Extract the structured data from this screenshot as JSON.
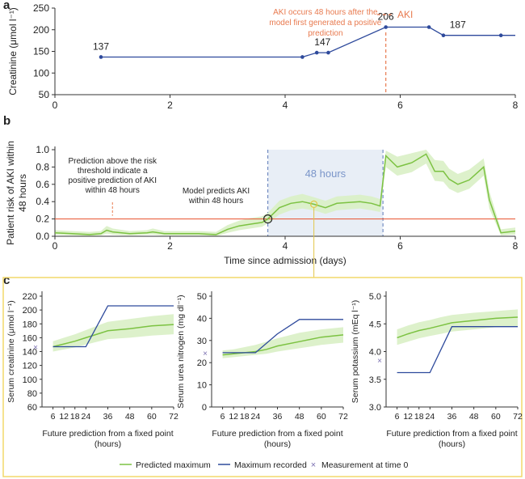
{
  "panels": {
    "a": "a",
    "b": "b",
    "c": "c"
  },
  "colors": {
    "measured": "#2e4a9c",
    "predicted": "#7cc242",
    "band": "#d9efc5",
    "event": "#e87a4f",
    "threshold": "#e8502c",
    "window_fill": "#e8eef6",
    "window_line": "#5a78b8",
    "window_text": "#7a95c9",
    "frame": "#f2d86a",
    "crossMark": "#7a6fb0"
  },
  "chart_data": [
    {
      "id": "a",
      "type": "line",
      "ylabel": "Creatinine (μmol l⁻¹)",
      "xlim": [
        0,
        8
      ],
      "ylim": [
        50,
        250
      ],
      "xticks": [
        0,
        2,
        4,
        6,
        8
      ],
      "yticks": [
        50,
        100,
        150,
        200,
        250
      ],
      "series": [
        {
          "points": [
            [
              0.8,
              137
            ],
            [
              4.3,
              137
            ],
            [
              4.55,
              147
            ],
            [
              4.75,
              147
            ],
            [
              5.75,
              206
            ],
            [
              6.5,
              206
            ],
            [
              6.75,
              187
            ],
            [
              7.75,
              187
            ],
            [
              8,
              187
            ]
          ]
        }
      ],
      "markers": [
        0.8,
        4.3,
        4.55,
        4.75,
        5.75,
        6.5,
        6.75,
        7.75
      ],
      "labels": [
        {
          "x": 0.8,
          "y": 137,
          "text": "137"
        },
        {
          "x": 4.65,
          "y": 147,
          "text": "147"
        },
        {
          "x": 5.75,
          "y": 206,
          "text": "206"
        },
        {
          "x": 7.0,
          "y": 187,
          "text": "187"
        }
      ],
      "event_x": 5.75,
      "annotation": [
        "AKI occurs 48 hours after the",
        "model first generated a positive",
        "prediction"
      ],
      "legend": "AKI"
    },
    {
      "id": "b",
      "type": "line",
      "ylabel": [
        "Patient risk of AKI within",
        "48 hours"
      ],
      "xlabel": "Time since admission (days)",
      "xlim": [
        0,
        8
      ],
      "ylim": [
        0,
        1
      ],
      "xticks": [
        0,
        2,
        4,
        6,
        8
      ],
      "yticks": [
        0,
        0.2,
        0.4,
        0.6,
        0.8,
        1.0
      ],
      "threshold": 0.2,
      "window": [
        3.7,
        5.7
      ],
      "window_label": "48 hours",
      "crossing": [
        3.7,
        0.2
      ],
      "crossing_label": [
        "Model predicts AKI",
        "within 48 hours"
      ],
      "threshold_note": [
        "Prediction above the risk",
        "threshold indicate a",
        "positive prediction of AKI",
        "within 48 hours"
      ],
      "arrow_x": 1.0,
      "selected_x": 4.5,
      "x": [
        0,
        0.3,
        0.6,
        0.8,
        0.9,
        1.0,
        1.3,
        1.6,
        1.7,
        1.9,
        2.2,
        2.5,
        2.8,
        3.0,
        3.2,
        3.4,
        3.6,
        3.7,
        3.9,
        4.1,
        4.3,
        4.5,
        4.7,
        4.9,
        5.1,
        5.3,
        5.5,
        5.65,
        5.75,
        5.95,
        6.2,
        6.45,
        6.6,
        6.75,
        6.85,
        7.0,
        7.2,
        7.45,
        7.55,
        7.75,
        8.0
      ],
      "risk": [
        0.04,
        0.03,
        0.02,
        0.03,
        0.07,
        0.05,
        0.03,
        0.04,
        0.05,
        0.03,
        0.03,
        0.03,
        0.02,
        0.08,
        0.12,
        0.14,
        0.16,
        0.2,
        0.33,
        0.38,
        0.4,
        0.37,
        0.33,
        0.38,
        0.39,
        0.4,
        0.38,
        0.35,
        0.93,
        0.8,
        0.85,
        0.95,
        0.75,
        0.75,
        0.66,
        0.6,
        0.65,
        0.8,
        0.42,
        0.04,
        0.06
      ],
      "lower": [
        0.02,
        0.01,
        0.0,
        0.01,
        0.03,
        0.02,
        0.01,
        0.02,
        0.02,
        0.01,
        0.01,
        0.01,
        0.0,
        0.04,
        0.07,
        0.09,
        0.11,
        0.15,
        0.25,
        0.3,
        0.32,
        0.3,
        0.26,
        0.3,
        0.31,
        0.32,
        0.3,
        0.28,
        0.8,
        0.7,
        0.74,
        0.84,
        0.64,
        0.63,
        0.55,
        0.5,
        0.55,
        0.7,
        0.32,
        0.01,
        0.02
      ],
      "upper": [
        0.07,
        0.06,
        0.05,
        0.06,
        0.12,
        0.09,
        0.06,
        0.07,
        0.09,
        0.06,
        0.06,
        0.06,
        0.05,
        0.13,
        0.18,
        0.21,
        0.23,
        0.27,
        0.41,
        0.46,
        0.49,
        0.45,
        0.41,
        0.46,
        0.47,
        0.48,
        0.46,
        0.43,
        0.99,
        0.92,
        0.96,
        1.0,
        0.88,
        0.87,
        0.78,
        0.72,
        0.77,
        0.9,
        0.52,
        0.08,
        0.1
      ]
    },
    {
      "id": "c1",
      "type": "line",
      "ylabel": "Serum creatinine (μmol l⁻¹)",
      "xlabel": [
        "Future prediction from a fixed point",
        "(hours)"
      ],
      "xlim": [
        0,
        72
      ],
      "ylim": [
        60,
        220
      ],
      "xticks": [
        6,
        12,
        18,
        24,
        36,
        48,
        60,
        72
      ],
      "yticks": [
        60,
        80,
        100,
        120,
        140,
        160,
        180,
        200,
        220
      ],
      "time0": 147,
      "recorded": [
        [
          6,
          147
        ],
        [
          24,
          147
        ],
        [
          36,
          206
        ],
        [
          72,
          206
        ]
      ],
      "pred_x": [
        6,
        12,
        18,
        24,
        30,
        36,
        48,
        60,
        72
      ],
      "predicted": [
        147,
        151,
        155,
        160,
        165,
        170,
        173,
        177,
        179
      ],
      "pred_lower": [
        140,
        143,
        146,
        150,
        154,
        158,
        160,
        163,
        165
      ],
      "pred_upper": [
        155,
        160,
        165,
        171,
        177,
        183,
        187,
        191,
        194
      ]
    },
    {
      "id": "c2",
      "type": "line",
      "ylabel": "Serum urea nitrogen (mg dl⁻¹)",
      "xlabel": [
        "Future prediction from a fixed point",
        "(hours)"
      ],
      "xlim": [
        0,
        72
      ],
      "ylim": [
        0,
        50
      ],
      "xticks": [
        6,
        12,
        18,
        24,
        36,
        48,
        60,
        72
      ],
      "yticks": [
        0,
        10,
        20,
        30,
        40,
        50
      ],
      "time0": 24.5,
      "recorded": [
        [
          6,
          24.5
        ],
        [
          24,
          24.5
        ],
        [
          36,
          33
        ],
        [
          48,
          39.5
        ],
        [
          72,
          39.5
        ]
      ],
      "pred_x": [
        6,
        12,
        18,
        24,
        30,
        36,
        48,
        60,
        72
      ],
      "predicted": [
        23.5,
        24,
        24.5,
        25,
        26,
        27.5,
        29.5,
        31.5,
        32.5
      ],
      "pred_lower": [
        22,
        22.5,
        23,
        23.5,
        24,
        25,
        26.5,
        28,
        29
      ],
      "pred_upper": [
        25.5,
        26,
        27,
        28,
        29.5,
        31,
        33.5,
        35,
        36
      ]
    },
    {
      "id": "c3",
      "type": "line",
      "ylabel": "Serum potassium (mEq l⁻¹)",
      "xlabel": [
        "Future prediction from a fixed point",
        "(hours)"
      ],
      "xlim": [
        0,
        72
      ],
      "ylim": [
        3.0,
        5.0
      ],
      "xticks": [
        6,
        12,
        18,
        24,
        36,
        48,
        60,
        72
      ],
      "yticks": [
        "3.0",
        "3.5",
        "4.0",
        "4.5",
        "5.0"
      ],
      "time0": 3.85,
      "recorded": [
        [
          6,
          3.62
        ],
        [
          24,
          3.62
        ],
        [
          36,
          4.45
        ],
        [
          72,
          4.45
        ]
      ],
      "pred_x": [
        6,
        12,
        18,
        24,
        30,
        36,
        48,
        60,
        72
      ],
      "predicted": [
        4.25,
        4.32,
        4.38,
        4.42,
        4.47,
        4.52,
        4.56,
        4.6,
        4.62
      ],
      "pred_lower": [
        4.12,
        4.18,
        4.24,
        4.28,
        4.32,
        4.36,
        4.4,
        4.44,
        4.46
      ],
      "pred_upper": [
        4.4,
        4.47,
        4.53,
        4.57,
        4.62,
        4.66,
        4.7,
        4.73,
        4.76
      ]
    }
  ],
  "legend_c": {
    "predicted": "Predicted maximum",
    "recorded": "Maximum recorded",
    "time0": "Measurement at time 0",
    "time0_symbol": "×"
  }
}
